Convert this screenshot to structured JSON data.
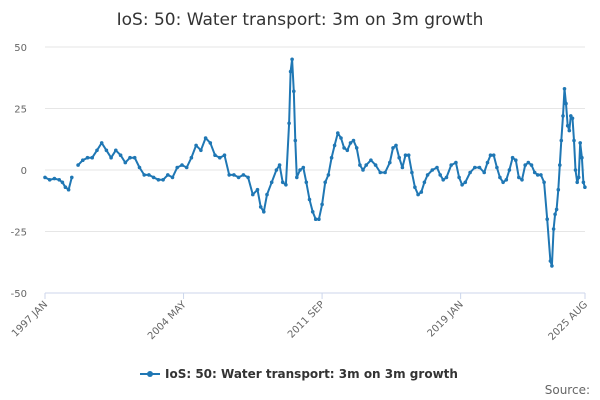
{
  "chart_data": {
    "type": "line",
    "title": "IoS: 50: Water transport: 3m on 3m growth",
    "xlabel": "",
    "ylabel": "",
    "ylim": [
      -50,
      50
    ],
    "y_ticks": [
      50,
      25,
      0,
      -25,
      -50
    ],
    "x_range": [
      "1997 JAN",
      "2025 AUG"
    ],
    "x_tick_labels": [
      "1997 JAN",
      "2004 MAY",
      "2011 SEP",
      "2019 JAN",
      "2025 AUG"
    ],
    "legend": "bottom-center",
    "grid": true,
    "series": [
      {
        "name": "IoS: 50: Water transport: 3m on 3m growth",
        "color": "#1f77b4",
        "points": [
          [
            1997.0,
            -3
          ],
          [
            1997.25,
            -4
          ],
          [
            1997.5,
            -3.5
          ],
          [
            1997.75,
            -4
          ],
          [
            1997.92,
            -5
          ],
          [
            1998.08,
            -7
          ],
          [
            1998.25,
            -8
          ],
          [
            1998.42,
            -3
          ],
          [
            1998.75,
            2
          ],
          [
            1999.0,
            4
          ],
          [
            1999.25,
            5
          ],
          [
            1999.5,
            5
          ],
          [
            1999.75,
            8
          ],
          [
            2000.0,
            11
          ],
          [
            2000.25,
            8
          ],
          [
            2000.5,
            5
          ],
          [
            2000.75,
            8
          ],
          [
            2001.0,
            6
          ],
          [
            2001.25,
            3
          ],
          [
            2001.5,
            5
          ],
          [
            2001.75,
            5
          ],
          [
            2002.0,
            1
          ],
          [
            2002.25,
            -2
          ],
          [
            2002.5,
            -2
          ],
          [
            2002.75,
            -3
          ],
          [
            2003.0,
            -4
          ],
          [
            2003.25,
            -4
          ],
          [
            2003.5,
            -2
          ],
          [
            2003.75,
            -3
          ],
          [
            2004.0,
            1
          ],
          [
            2004.25,
            2
          ],
          [
            2004.5,
            1
          ],
          [
            2004.75,
            5
          ],
          [
            2005.0,
            10
          ],
          [
            2005.25,
            8
          ],
          [
            2005.5,
            13
          ],
          [
            2005.75,
            11
          ],
          [
            2006.0,
            6
          ],
          [
            2006.25,
            5
          ],
          [
            2006.5,
            6
          ],
          [
            2006.75,
            -2
          ],
          [
            2007.0,
            -2
          ],
          [
            2007.25,
            -3
          ],
          [
            2007.5,
            -2
          ],
          [
            2007.75,
            -3
          ],
          [
            2008.0,
            -10
          ],
          [
            2008.25,
            -8
          ],
          [
            2008.42,
            -15
          ],
          [
            2008.58,
            -17
          ],
          [
            2008.75,
            -10
          ],
          [
            2009.0,
            -5
          ],
          [
            2009.25,
            0
          ],
          [
            2009.42,
            2
          ],
          [
            2009.58,
            -5
          ],
          [
            2009.75,
            -6
          ],
          [
            2009.92,
            19
          ],
          [
            2010.0,
            40
          ],
          [
            2010.08,
            45
          ],
          [
            2010.17,
            32
          ],
          [
            2010.25,
            12
          ],
          [
            2010.33,
            -3
          ],
          [
            2010.5,
            0
          ],
          [
            2010.67,
            1
          ],
          [
            2010.83,
            -5
          ],
          [
            2011.0,
            -12
          ],
          [
            2011.17,
            -17
          ],
          [
            2011.33,
            -20
          ],
          [
            2011.5,
            -20
          ],
          [
            2011.67,
            -14
          ],
          [
            2011.83,
            -5
          ],
          [
            2012.0,
            -2
          ],
          [
            2012.17,
            5
          ],
          [
            2012.33,
            10
          ],
          [
            2012.5,
            15
          ],
          [
            2012.67,
            13
          ],
          [
            2012.83,
            9
          ],
          [
            2013.0,
            8
          ],
          [
            2013.17,
            11
          ],
          [
            2013.33,
            12
          ],
          [
            2013.5,
            9
          ],
          [
            2013.67,
            2
          ],
          [
            2013.83,
            0
          ],
          [
            2014.0,
            2
          ],
          [
            2014.25,
            4
          ],
          [
            2014.5,
            2
          ],
          [
            2014.75,
            -1
          ],
          [
            2015.0,
            -1
          ],
          [
            2015.25,
            3
          ],
          [
            2015.42,
            9
          ],
          [
            2015.58,
            10
          ],
          [
            2015.75,
            5
          ],
          [
            2015.92,
            1
          ],
          [
            2016.08,
            6
          ],
          [
            2016.25,
            6
          ],
          [
            2016.42,
            -1
          ],
          [
            2016.58,
            -7
          ],
          [
            2016.75,
            -10
          ],
          [
            2016.92,
            -9
          ],
          [
            2017.08,
            -5
          ],
          [
            2017.25,
            -2
          ],
          [
            2017.5,
            0
          ],
          [
            2017.75,
            1
          ],
          [
            2017.92,
            -2
          ],
          [
            2018.08,
            -4
          ],
          [
            2018.25,
            -3
          ],
          [
            2018.5,
            2
          ],
          [
            2018.75,
            3
          ],
          [
            2018.92,
            -3
          ],
          [
            2019.08,
            -6
          ],
          [
            2019.25,
            -5
          ],
          [
            2019.5,
            -1
          ],
          [
            2019.75,
            1
          ],
          [
            2020.0,
            1
          ],
          [
            2020.25,
            -1
          ],
          [
            2020.42,
            3
          ],
          [
            2020.58,
            6
          ],
          [
            2020.75,
            6
          ],
          [
            2020.92,
            1
          ],
          [
            2021.08,
            -3
          ],
          [
            2021.25,
            -5
          ],
          [
            2021.42,
            -4
          ],
          [
            2021.58,
            0
          ],
          [
            2021.75,
            5
          ],
          [
            2021.92,
            4
          ],
          [
            2022.08,
            -3
          ],
          [
            2022.25,
            -4
          ],
          [
            2022.42,
            2
          ],
          [
            2022.58,
            3
          ],
          [
            2022.75,
            2
          ],
          [
            2022.92,
            -1
          ],
          [
            2023.08,
            -2
          ],
          [
            2023.25,
            -2
          ],
          [
            2023.42,
            -5
          ],
          [
            2023.58,
            -20
          ],
          [
            2023.75,
            -37
          ],
          [
            2023.83,
            -39
          ],
          [
            2023.92,
            -24
          ],
          [
            2024.0,
            -18
          ],
          [
            2024.08,
            -16
          ],
          [
            2024.17,
            -8
          ],
          [
            2024.25,
            2
          ],
          [
            2024.33,
            12
          ],
          [
            2024.42,
            22
          ],
          [
            2024.5,
            33
          ],
          [
            2024.58,
            27
          ],
          [
            2024.67,
            18
          ],
          [
            2024.75,
            16
          ],
          [
            2024.83,
            22
          ],
          [
            2024.92,
            21
          ],
          [
            2025.0,
            12
          ],
          [
            2025.08,
            0
          ],
          [
            2025.17,
            -5
          ],
          [
            2025.25,
            -3
          ],
          [
            2025.33,
            11
          ],
          [
            2025.42,
            5
          ],
          [
            2025.5,
            -5
          ],
          [
            2025.58,
            -7
          ]
        ]
      }
    ]
  },
  "legend": {
    "label": "IoS: 50: Water transport: 3m on 3m growth"
  },
  "source": {
    "label": "Source:"
  }
}
